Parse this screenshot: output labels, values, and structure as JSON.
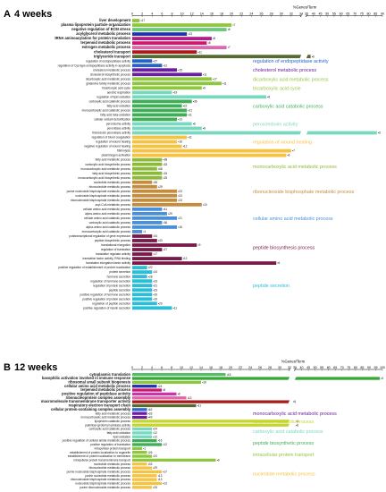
{
  "chart_data": [
    {
      "type": "bar",
      "panel": "A",
      "title": "4 weeks",
      "xlabel": "%Genes/Term",
      "xlim": [
        0,
        90
      ],
      "axis_break": [
        34,
        35
      ],
      "ticks": [
        0,
        2,
        4,
        6,
        8,
        10,
        12,
        14,
        16,
        18,
        20,
        22,
        24,
        26,
        28,
        30,
        32,
        34,
        35,
        40,
        45,
        50,
        55,
        60,
        65,
        70,
        75,
        80,
        85,
        90
      ],
      "bars": [
        {
          "label": "liver development",
          "value": 1.5,
          "count": "17",
          "color": "#8fc63f",
          "highlight": true
        },
        {
          "label": "plasma lipoprotein particle organization",
          "value": 20,
          "count": "7",
          "color": "#8fc63f",
          "highlight": true
        },
        {
          "label": "negative regulation of ECM stress",
          "value": 19,
          "count": "6",
          "color": "#66cc77",
          "highlight": true
        },
        {
          "label": "acylglycerol metabolic process",
          "value": 11,
          "count": "13",
          "color": "#2233aa",
          "highlight": true
        },
        {
          "label": "tRNA aminoacylation for protein translation",
          "value": 16,
          "count": "8",
          "color": "#b8198f",
          "highlight": true
        },
        {
          "label": "terpenoid metabolic process",
          "value": 15,
          "count": "8",
          "color": "#cc1a6a",
          "highlight": true
        },
        {
          "label": "estrogen metabolic process",
          "value": 19,
          "count": "7",
          "color": "#e066b0",
          "highlight": true
        },
        {
          "label": "cholesterol transport",
          "value": 13,
          "count": "11",
          "color": "#aa1a1a",
          "highlight": true
        },
        {
          "label": "triglyceride transport",
          "value": 38,
          "count": "6",
          "color": "#556b2f",
          "highlight": true
        },
        {
          "label": "regulation of endopeptidase activity",
          "value": 4,
          "count": "27",
          "color": "#2563c9"
        },
        {
          "label": "regulation of Cys-type endopeptidase activity in apoptosis",
          "value": 6,
          "count": "12",
          "color": "#2563c9"
        },
        {
          "label": "cholesterol metabolic process",
          "value": 9,
          "count": "15",
          "color": "#6a1fa0"
        },
        {
          "label": "cholesterol biosynthetic process",
          "value": 14,
          "count": "11",
          "color": "#6a1fa0"
        },
        {
          "label": "dicarboxylic acid metabolic process",
          "value": 16,
          "count": "17",
          "color": "#8fc63f"
        },
        {
          "label": "glutamine family metabolic process",
          "value": 18,
          "count": "11",
          "color": "#8fc63f"
        },
        {
          "label": "tricarboxylic acid cycle",
          "value": 14,
          "count": "9",
          "color": "#8fc63f"
        },
        {
          "label": "aerobic respiration",
          "value": 8,
          "count": "19",
          "color": "#79d9c0"
        },
        {
          "label": "regulation of lipid oxidation",
          "value": 27,
          "count": "8",
          "color": "#79d9c0"
        },
        {
          "label": "carboxylic acid catabolic process",
          "value": 12,
          "count": "36",
          "color": "#3fae57"
        },
        {
          "label": "fatty acid oxidation",
          "value": 10,
          "count": "22",
          "color": "#3fae57"
        },
        {
          "label": "monocarboxylic acid catabolic process",
          "value": 11,
          "count": "21",
          "color": "#3fae57"
        },
        {
          "label": "fatty acid beta-oxidation",
          "value": 11,
          "count": "11",
          "color": "#3fae57"
        },
        {
          "label": "cellular oxidant detoxification",
          "value": 9,
          "count": "13",
          "color": "#3fae57"
        },
        {
          "label": "peroxisome activity",
          "value": 12,
          "count": "6",
          "color": "#79d9c0"
        },
        {
          "label": "peroxidase activity",
          "value": 14,
          "count": "8",
          "color": "#79d9c0"
        },
        {
          "label": "thioredoxin peroxidase activity",
          "value": 86,
          "count": "6",
          "color": "#79d9c0"
        },
        {
          "label": "regulation of blood coagulation",
          "value": 11,
          "count": "11",
          "color": "#f5c242"
        },
        {
          "label": "regulation of wound healing",
          "value": 9,
          "count": "16",
          "color": "#f5c242"
        },
        {
          "label": "negative regulation of wound healing",
          "value": 10,
          "count": "12",
          "color": "#f5c242"
        },
        {
          "label": "fibrinolysis",
          "value": 32,
          "count": "7",
          "color": "#f5c242"
        },
        {
          "label": "plasminogen activation",
          "value": 31,
          "count": "6",
          "color": "#f5c242"
        },
        {
          "label": "fatty acid metabolic process",
          "value": 6,
          "count": "38",
          "color": "#8bb93a"
        },
        {
          "label": "carboxylic acid biosynthetic process",
          "value": 6,
          "count": "33",
          "color": "#8bb93a"
        },
        {
          "label": "monocarboxylic acid metabolic process",
          "value": 5,
          "count": "68",
          "color": "#8bb93a"
        },
        {
          "label": "fatty acid biosynthetic process",
          "value": 6,
          "count": "15",
          "color": "#8bb93a"
        },
        {
          "label": "monocarboxylic acid biosynthetic process",
          "value": 6,
          "count": "25",
          "color": "#8bb93a"
        },
        {
          "label": "nucleotide metabolic process",
          "value": 4,
          "count": "35",
          "color": "#c68c3e"
        },
        {
          "label": "ribonucleotide metabolic process",
          "value": 5,
          "count": "29",
          "color": "#c68c3e"
        },
        {
          "label": "purine nucleoside bisphosphate metabolic process",
          "value": 9,
          "count": "23",
          "color": "#c68c3e"
        },
        {
          "label": "nucleoside bisphosphate metabolic process",
          "value": 9,
          "count": "23",
          "color": "#c68c3e"
        },
        {
          "label": "ribonucleoside bisphosphate metabolic process",
          "value": 9,
          "count": "23",
          "color": "#c68c3e"
        },
        {
          "label": "acyl-CoA metabolic process",
          "value": 14,
          "count": "10",
          "color": "#c68c3e"
        },
        {
          "label": "cellular amino acid metabolic process",
          "value": 6,
          "count": "41",
          "color": "#4a90d9"
        },
        {
          "label": "alpha-amino acid metabolic process",
          "value": 7,
          "count": "29",
          "color": "#4a90d9"
        },
        {
          "label": "cellular amino acid catabolic process",
          "value": 9,
          "count": "21",
          "color": "#4a90d9"
        },
        {
          "label": "carboxylic acid catabolic process",
          "value": 6,
          "count": "36",
          "color": "#4a90d9"
        },
        {
          "label": "alpha-amino acid catabolic process",
          "value": 9,
          "count": "16",
          "color": "#4a90d9"
        },
        {
          "label": "monocarboxylic acid catabolic process",
          "value": 2,
          "count": "1",
          "color": "#4a90d9"
        },
        {
          "label": "posttranscriptional regulation of gene expression",
          "value": 4,
          "count": "34",
          "color": "#7a1a4a"
        },
        {
          "label": "peptide biosynthetic process",
          "value": 5,
          "count": "43",
          "color": "#7a1a4a"
        },
        {
          "label": "translational elongation",
          "value": 13,
          "count": "9",
          "color": "#7a1a4a"
        },
        {
          "label": "regulation of translation",
          "value": 6,
          "count": "27",
          "color": "#7a1a4a"
        },
        {
          "label": "translation regulator activity",
          "value": 4,
          "count": "17",
          "color": "#7a1a4a"
        },
        {
          "label": "translation factor activity, RNA binding",
          "value": 10,
          "count": "12",
          "color": "#7a1a4a"
        },
        {
          "label": "translation elongation factor activity",
          "value": 29,
          "count": "6",
          "color": "#7a1a4a"
        },
        {
          "label": "positive regulation of establishment of protein localization",
          "value": 3,
          "count": "22",
          "color": "#2abed8"
        },
        {
          "label": "protein secretion",
          "value": 4,
          "count": "24",
          "color": "#2abed8"
        },
        {
          "label": "hormone secretion",
          "value": 3,
          "count": "28",
          "color": "#2abed8"
        },
        {
          "label": "regulation of hormone secretion",
          "value": 4,
          "count": "23",
          "color": "#2abed8"
        },
        {
          "label": "regulation of protein secretion",
          "value": 4,
          "count": "21",
          "color": "#2abed8"
        },
        {
          "label": "peptide secretion",
          "value": 4,
          "count": "23",
          "color": "#2abed8"
        },
        {
          "label": "positive regulation of hormone secretion",
          "value": 4,
          "count": "16",
          "color": "#2abed8"
        },
        {
          "label": "positive regulation of protein secretion",
          "value": 4,
          "count": "19",
          "color": "#2abed8"
        },
        {
          "label": "regulation of peptide secretion",
          "value": 5,
          "count": "20",
          "color": "#2abed8"
        },
        {
          "label": "positive regulation of insulin secretion",
          "value": 8,
          "count": "11",
          "color": "#2abed8"
        }
      ],
      "groups": [
        {
          "label": "regulation of endopeptidase activity",
          "color": "#2563c9",
          "row": 9.5
        },
        {
          "label": "cholesterol metabolic process",
          "color": "#6a1fa0",
          "row": 11.5
        },
        {
          "label": "dicarboxylic acid metabolic process",
          "color": "#8fc63f",
          "row": 13.5
        },
        {
          "label": "tricarboxylic acid cycle",
          "color": "#8fc63f",
          "row": 15.5
        },
        {
          "label": "carboxylic acid catabolic process",
          "color": "#3fae57",
          "row": 19.5
        },
        {
          "label": "peroxiredoxin activity",
          "color": "#79d9c0",
          "row": 23.5
        },
        {
          "label": "regulation of wound healing",
          "color": "#f5c242",
          "row": 27.5
        },
        {
          "label": "monocarboxylic acid metabolic process",
          "color": "#8bb93a",
          "row": 33
        },
        {
          "label": "ribonucleoside bisphosphate metabolic process",
          "color": "#c68c3e",
          "row": 38.5
        },
        {
          "label": "cellular amino acid metabolic process",
          "color": "#4a90d9",
          "row": 44.5
        },
        {
          "label": "peptide biosynthesis process",
          "color": "#7a1a4a",
          "row": 51
        },
        {
          "label": "peptide secretion",
          "color": "#2abed8",
          "row": 59.5
        }
      ]
    },
    {
      "type": "bar",
      "panel": "B",
      "title": "12 weeks",
      "xlabel": "%Genes/Term",
      "xlim": [
        0,
        100
      ],
      "axis_break": [
        32,
        35
      ],
      "ticks": [
        0,
        2,
        4,
        6,
        8,
        10,
        12,
        14,
        16,
        18,
        20,
        22,
        24,
        26,
        28,
        30,
        32,
        35,
        40,
        45,
        50,
        55,
        60,
        65,
        70,
        75,
        80,
        85,
        90,
        95,
        100
      ],
      "bars": [
        {
          "label": "cytoplasmic translation",
          "value": 19,
          "count": "18",
          "color": "#55bb66",
          "highlight": true
        },
        {
          "label": "basophilic activation involved in immune response",
          "value": 98,
          "count": "3",
          "color": "#33aa33",
          "highlight": true
        },
        {
          "label": "ribosomal small subunit biogenesis",
          "value": 14,
          "count": "16",
          "color": "#8fc63f",
          "highlight": true
        },
        {
          "label": "cellular amino acid metabolic process",
          "value": 5,
          "count": "24",
          "color": "#2233aa",
          "highlight": true
        },
        {
          "label": "terpenoid metabolic process",
          "value": 6,
          "count": "8",
          "color": "#cc1a6a",
          "highlight": true
        },
        {
          "label": "positive regulation of peptidase activity",
          "value": 9,
          "count": "8",
          "color": "#cc33aa",
          "highlight": true
        },
        {
          "label": "ribonucleoprotein complex assembly",
          "value": 11,
          "count": "13",
          "color": "#e066b0",
          "highlight": true
        },
        {
          "label": "macromolecule transmembrane transporter activity",
          "value": 33,
          "count": "6",
          "color": "#aa1a1a",
          "highlight": true
        },
        {
          "label": "respiratory electron transport chain",
          "value": 13,
          "count": "11",
          "color": "#556b2f",
          "highlight": true
        },
        {
          "label": "cellular protein-containing complex assembly",
          "value": 3,
          "count": "62",
          "color": "#3366cc",
          "highlight": true
        },
        {
          "label": "fatty acid metabolic process",
          "value": 3,
          "count": "33",
          "color": "#6a1fa0"
        },
        {
          "label": "monocarboxylic acid metabolic process",
          "value": 3,
          "count": "49",
          "color": "#6a1fa0"
        },
        {
          "label": "lipoprotein catabolic process",
          "value": 35,
          "count": "6",
          "color": "#c5d62a"
        },
        {
          "label": "palmitoyl-(protein) hydrolase activity",
          "value": 35,
          "count": "6",
          "color": "#c5d62a"
        },
        {
          "label": "carboxylic acid catabolic process",
          "value": 4,
          "count": "24",
          "color": "#79d9c0"
        },
        {
          "label": "fatty acid oxidation",
          "value": 4,
          "count": "12",
          "color": "#79d9c0"
        },
        {
          "label": "lipid oxidation",
          "value": 4,
          "count": "12",
          "color": "#79d9c0"
        },
        {
          "label": "positive regulation of cellular amide metabolic process",
          "value": 5,
          "count": "16",
          "color": "#3fae57"
        },
        {
          "label": "positive regulation of translation",
          "value": 6,
          "count": "12",
          "color": "#3fae57"
        },
        {
          "label": "intracellular protein transport",
          "value": 2,
          "count": "1",
          "color": "#8fc63f"
        },
        {
          "label": "establishment of protein localization to organelle",
          "value": 3,
          "count": "26",
          "color": "#8fc63f"
        },
        {
          "label": "establishment of protein localization to membrane",
          "value": 4,
          "count": "20",
          "color": "#8fc63f"
        },
        {
          "label": "intracellular protein transmembrane transport",
          "value": 17,
          "count": "9",
          "color": "#8fc63f"
        },
        {
          "label": "nucleotide metabolic process",
          "value": 3,
          "count": "33",
          "color": "#f5c242"
        },
        {
          "label": "ribonucleotide metabolic process",
          "value": 4,
          "count": "29",
          "color": "#f5c242"
        },
        {
          "label": "purine nucleoside bisphosphate metabolic process",
          "value": 6,
          "count": "17",
          "color": "#f5c242"
        },
        {
          "label": "purine nucleotide metabolic process",
          "value": 5,
          "count": "13",
          "color": "#f5c242"
        },
        {
          "label": "ribonucleoside bisphosphate metabolic process",
          "value": 5,
          "count": "13",
          "color": "#f5c242"
        },
        {
          "label": "nucleoside bisphosphate metabolic process",
          "value": 6,
          "count": "13",
          "color": "#f5c242"
        },
        {
          "label": "purine ribonucleoside metabolic process",
          "value": 4,
          "count": "25",
          "color": "#f5c242"
        }
      ],
      "groups": [
        {
          "label": "monocarboxylic acid metabolic process",
          "color": "#6a1fa0",
          "row": 10.5
        },
        {
          "label": "lipoprotein catabolic process",
          "color": "#c5d62a",
          "row": 12.5
        },
        {
          "label": "carboxylic acid catabolic process",
          "color": "#79d9c0",
          "row": 15
        },
        {
          "label": "peptide biosynthetic process",
          "color": "#3fae57",
          "row": 18
        },
        {
          "label": "intracellular protein transport",
          "color": "#8fc63f",
          "row": 21
        },
        {
          "label": "nucleotide metabolic process",
          "color": "#f5c242",
          "row": 26
        }
      ]
    }
  ]
}
